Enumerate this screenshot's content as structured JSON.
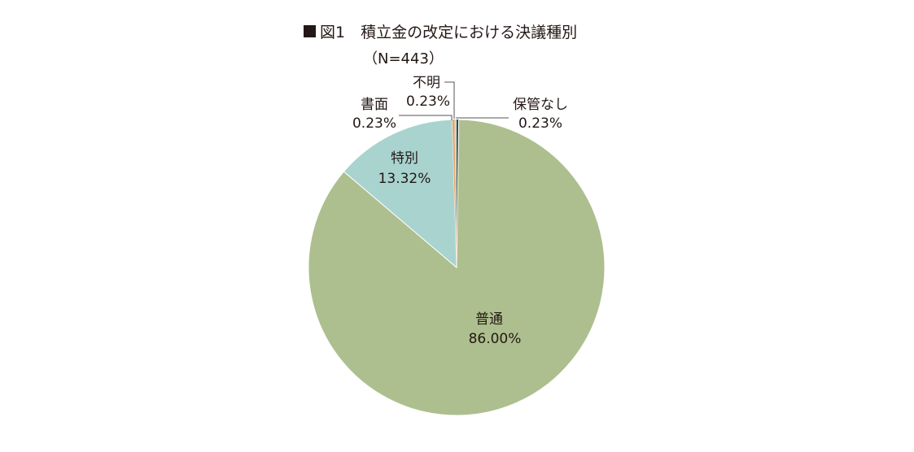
{
  "chart_data": {
    "type": "pie",
    "title": "図1　積立金の改定における決議種別",
    "subtitle": "（N=443）",
    "title_marker_color": "#231815",
    "start_angle_deg": 0,
    "direction": "clockwise",
    "slices": [
      {
        "label": "保管なし",
        "value": 0.23,
        "value_text": "0.23%",
        "color": "#1f4e5a"
      },
      {
        "label": "普通",
        "value": 86.0,
        "value_text": "86.00%",
        "color": "#adbf8e"
      },
      {
        "label": "特別",
        "value": 13.32,
        "value_text": "13.32%",
        "color": "#a9d3cf"
      },
      {
        "label": "書面",
        "value": 0.23,
        "value_text": "0.23%",
        "color": "#e8a56a"
      },
      {
        "label": "不明",
        "value": 0.23,
        "value_text": "0.23%",
        "color": "#d9d3c4"
      }
    ]
  }
}
